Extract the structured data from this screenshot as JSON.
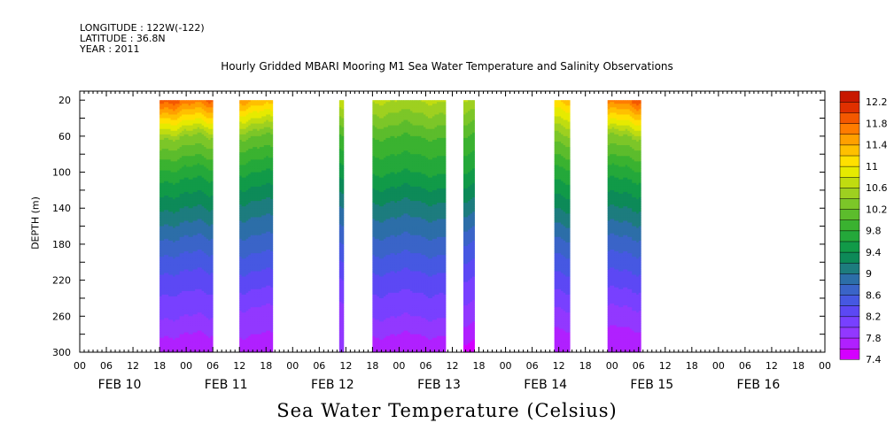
{
  "header": {
    "longitude": "LONGITUDE : 122W(-122)",
    "latitude": "LATITUDE : 36.8N",
    "year": "YEAR : 2011"
  },
  "chart_data": {
    "type": "heatmap",
    "title": "Hourly Gridded MBARI Mooring M1 Sea Water Temperature and Salinity Observations",
    "xlabel": "",
    "ylabel": "DEPTH (m)",
    "footer_label": "Sea Water Temperature (Celsius)",
    "x_unit": "hours since FEB 10 00:00",
    "xlim": [
      0,
      168
    ],
    "ylim": [
      300,
      10
    ],
    "y_ticks": [
      20,
      60,
      100,
      140,
      180,
      220,
      260,
      300
    ],
    "x_hour_ticks": [
      "00",
      "06",
      "12",
      "18",
      "00",
      "06",
      "12",
      "18",
      "00",
      "06",
      "12",
      "18",
      "00",
      "06",
      "12",
      "18",
      "00",
      "06",
      "12",
      "18",
      "00",
      "06",
      "12",
      "18",
      "00",
      "06",
      "12",
      "18",
      "00"
    ],
    "day_labels": [
      "FEB 10",
      "FEB 11",
      "FEB 12",
      "FEB 13",
      "FEB 14",
      "FEB 15",
      "FEB 16"
    ],
    "color_levels": [
      7.4,
      7.6,
      7.8,
      8.0,
      8.2,
      8.4,
      8.6,
      8.8,
      9.0,
      9.2,
      9.4,
      9.6,
      9.8,
      10.0,
      10.2,
      10.4,
      10.6,
      10.8,
      11.0,
      11.2,
      11.4,
      11.6,
      11.8,
      12.0,
      12.2,
      12.4
    ],
    "colorbar_labels": [
      "12.2",
      "11.8",
      "11.4",
      "11",
      "10.6",
      "10.2",
      "9.8",
      "9.4",
      "9",
      "8.6",
      "8.2",
      "7.8",
      "7.4"
    ],
    "colors": [
      "#d400ff",
      "#b020ff",
      "#9238ff",
      "#7840ff",
      "#5c48f4",
      "#4658e2",
      "#3a64c8",
      "#2c6ea8",
      "#1d7c7e",
      "#0d8a58",
      "#119a48",
      "#24a83a",
      "#3ab230",
      "#5cbc2c",
      "#7cc628",
      "#9ed020",
      "#c0dc10",
      "#e6ea00",
      "#ffe000",
      "#ffc000",
      "#ffa000",
      "#ff7c00",
      "#f45800",
      "#e03000",
      "#c81800"
    ],
    "depth_rows": [
      20,
      60,
      100,
      140,
      180,
      220,
      260,
      300
    ],
    "segments": [
      {
        "start_hour": 18,
        "end_hour": 30,
        "temperature_profile": [
          11.8,
          10.4,
          9.7,
          9.2,
          8.7,
          8.3,
          8.0,
          7.6
        ]
      },
      {
        "start_hour": 36,
        "end_hour": 43.5,
        "temperature_profile": [
          11.4,
          10.2,
          9.6,
          9.1,
          8.7,
          8.3,
          7.9,
          7.7
        ]
      },
      {
        "start_hour": 58.5,
        "end_hour": 59.5,
        "temperature_profile": [
          10.8,
          10.0,
          9.5,
          9.0,
          8.6,
          8.2,
          7.9,
          7.8
        ]
      },
      {
        "start_hour": 66,
        "end_hour": 82.5,
        "temperature_profile": [
          10.6,
          10.0,
          9.6,
          9.1,
          8.7,
          8.3,
          8.0,
          7.6
        ]
      },
      {
        "start_hour": 86.5,
        "end_hour": 89,
        "temperature_profile": [
          10.6,
          10.0,
          9.6,
          9.1,
          8.6,
          8.2,
          7.9,
          7.5
        ]
      },
      {
        "start_hour": 107,
        "end_hour": 110.5,
        "temperature_profile": [
          11.2,
          10.3,
          9.7,
          9.2,
          8.7,
          8.3,
          7.9,
          7.6
        ]
      },
      {
        "start_hour": 119,
        "end_hour": 126.5,
        "temperature_profile": [
          11.8,
          10.4,
          9.7,
          9.2,
          8.7,
          8.3,
          7.9,
          7.6
        ]
      }
    ]
  }
}
